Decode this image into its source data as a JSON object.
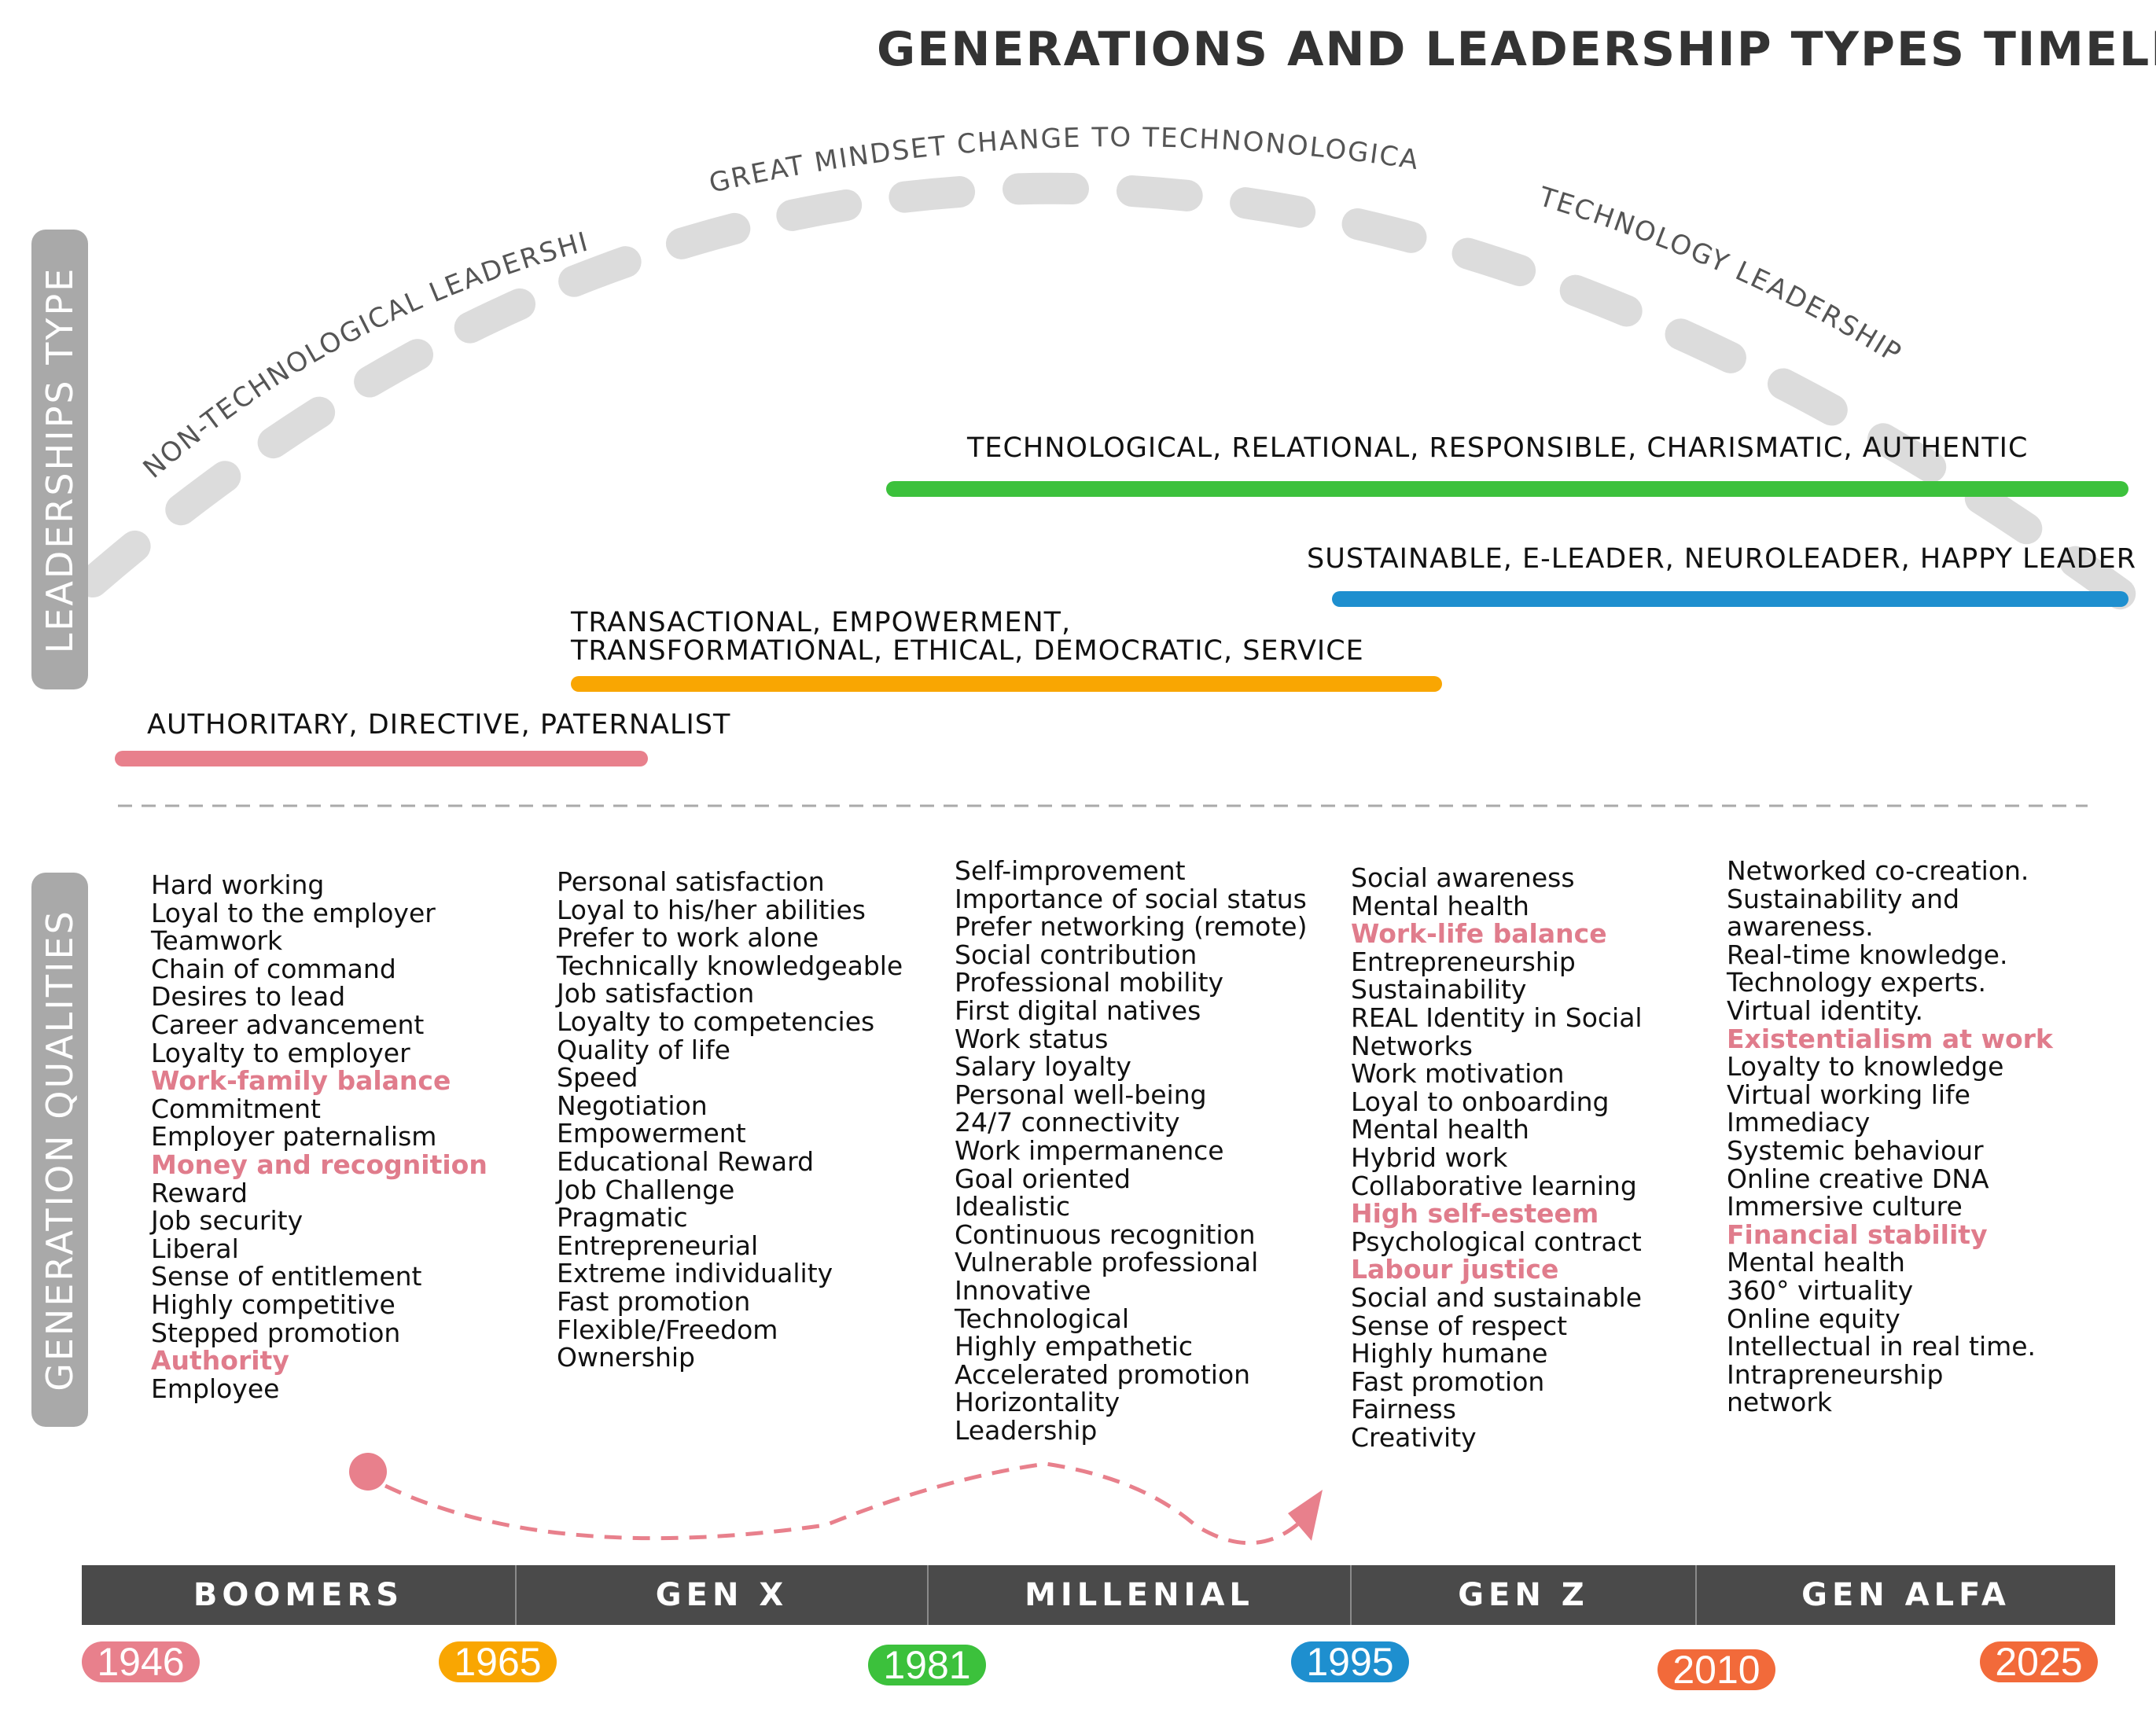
{
  "title": "GENERATIONS AND LEADERSHIP TYPES TIMELINE",
  "side_labels": {
    "leadership": "LEADERSHIPS TYPE",
    "qualities": "GENERATION QUALITIES"
  },
  "arc_labels": {
    "non_tech": "NON-TECHNOLOGICAL LEADERSHIP",
    "mindset": "GREAT MINDSET CHANGE TO TECHNONOLOGICAL",
    "tech": "TECHNOLOGY LEADERSHIP"
  },
  "leadership_bars": [
    {
      "label": "AUTHORITARY, DIRECTIVE, PATERNALIST",
      "color": "#e8808c"
    },
    {
      "label_lines": [
        "TRANSACTIONAL, EMPOWERMENT,",
        "TRANSFORMATIONAL, ETHICAL, DEMOCRATIC, SERVICE"
      ],
      "color": "#f9a602"
    },
    {
      "label": "TECHNOLOGICAL, RELATIONAL, RESPONSIBLE, CHARISMATIC, AUTHENTIC",
      "color": "#3cc13c"
    },
    {
      "label": "SUSTAINABLE,  E-LEADER, NEUROLEADER, HAPPY LEADER",
      "color": "#1e8fcf"
    }
  ],
  "qualities": [
    {
      "items": [
        "Hard working",
        "Loyal to the employer",
        "Teamwork",
        "Chain of command",
        "Desires to lead",
        "Career advancement",
        "Loyalty to employer",
        "Work-family balance",
        "Commitment",
        "Employer paternalism",
        "Money and recognition",
        "Reward",
        "Job security",
        "Liberal",
        "Sense of entitlement",
        "Highly competitive",
        "Stepped promotion",
        "Authority",
        "Employee"
      ]
    },
    {
      "items": [
        "Personal satisfaction",
        "Loyal to his/her abilities",
        "Prefer to work alone",
        "Technically knowledgeable",
        "Job satisfaction",
        "Loyalty to competencies",
        "Quality of life",
        "Speed",
        "Negotiation",
        "Empowerment",
        "Educational Reward",
        "Job Challenge",
        "Pragmatic",
        "Entrepreneurial",
        "Extreme individuality",
        "Fast promotion",
        "Flexible/Freedom",
        "Ownership"
      ]
    },
    {
      "items": [
        "Self-improvement",
        "Importance of social status",
        "Prefer networking (remote)",
        "Social contribution",
        "Professional mobility",
        "First digital natives",
        "Work status",
        "Salary loyalty",
        "Personal well-being",
        "24/7 connectivity",
        "Work impermanence",
        "Goal oriented",
        "Idealistic",
        "Continuous recognition",
        "Vulnerable professional",
        "Innovative",
        "Technological",
        "Highly empathetic",
        "Accelerated promotion",
        "Horizontality",
        "Leadership"
      ]
    },
    {
      "items": [
        "Social awareness",
        "Mental health",
        "Work-life balance",
        "Entrepreneurship",
        "Sustainability",
        "REAL Identity in Social",
        "Networks",
        "Work motivation",
        "Loyal to onboarding",
        "Mental health",
        "Hybrid work",
        "Collaborative learning",
        "High self-esteem",
        "Psychological contract",
        "Labour justice",
        "Social and sustainable",
        "Sense of respect",
        "Highly humane",
        "Fast promotion",
        "Fairness",
        "Creativity"
      ]
    },
    {
      "items": [
        "Networked co-creation.",
        "Sustainability and",
        "awareness.",
        "Real-time knowledge.",
        "Technology experts.",
        "Virtual identity.",
        "Existentialism at work",
        "Loyalty to knowledge",
        "Virtual working life",
        "Immediacy",
        "Systemic behaviour",
        "Online creative DNA",
        "Immersive culture",
        "Financial stability",
        "Mental health",
        "360° virtuality",
        "Online equity",
        "Intellectual in real time.",
        "Intrapreneurship",
        "network"
      ]
    }
  ],
  "generations": [
    "BOOMERS",
    "GEN X",
    "MILLENIAL",
    "GEN Z",
    "GEN ALFA"
  ],
  "years": [
    {
      "label": "1946",
      "color": "#e8808c"
    },
    {
      "label": "1965",
      "color": "#f9a602"
    },
    {
      "label": "1981",
      "color": "#3cc13c"
    },
    {
      "label": "1995",
      "color": "#1e8fcf"
    },
    {
      "label": "2010",
      "color": "#f26a3a"
    },
    {
      "label": "2025",
      "color": "#f26a3a"
    }
  ]
}
